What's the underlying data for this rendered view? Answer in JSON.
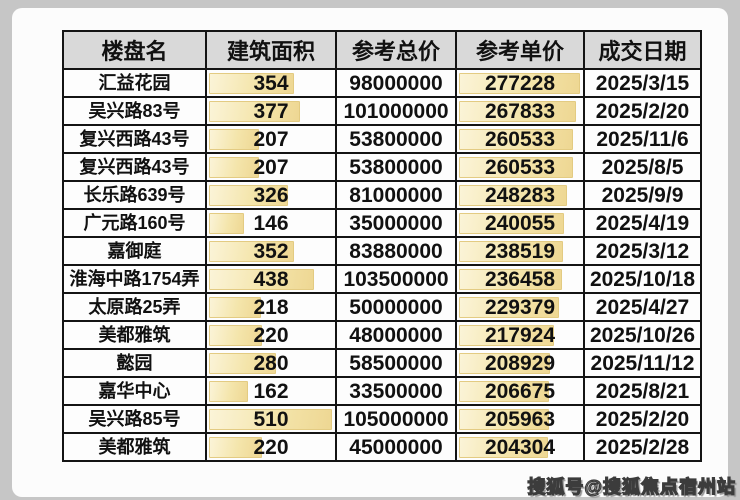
{
  "page": {
    "watermark": "搜狐号@搜狐焦点宿州站"
  },
  "colors": {
    "page_background": "#c6c6c6",
    "card_background": "#fcfcfc",
    "header_background": "#d9d9d9",
    "grid_border": "#141414",
    "data_bar_fill": "#f4e5ab",
    "data_bar_border": "#e3cb82",
    "text": "#111111"
  },
  "bars": {
    "area_max": 510,
    "unit_max": 277228
  },
  "table": {
    "columns": [
      {
        "key": "name",
        "label": "楼盘名"
      },
      {
        "key": "area",
        "label": "建筑面积"
      },
      {
        "key": "total",
        "label": "参考总价"
      },
      {
        "key": "unit",
        "label": "参考单价"
      },
      {
        "key": "date",
        "label": "成交日期"
      }
    ],
    "rows": [
      {
        "name": "汇益花园",
        "area": 354,
        "total": 98000000,
        "unit": 277228,
        "date": "2025/3/15"
      },
      {
        "name": "吴兴路83号",
        "area": 377,
        "total": 101000000,
        "unit": 267833,
        "date": "2025/2/20"
      },
      {
        "name": "复兴西路43号",
        "area": 207,
        "total": 53800000,
        "unit": 260533,
        "date": "2025/11/6"
      },
      {
        "name": "复兴西路43号",
        "area": 207,
        "total": 53800000,
        "unit": 260533,
        "date": "2025/8/5"
      },
      {
        "name": "长乐路639号",
        "area": 326,
        "total": 81000000,
        "unit": 248283,
        "date": "2025/9/9"
      },
      {
        "name": "广元路160号",
        "area": 146,
        "total": 35000000,
        "unit": 240055,
        "date": "2025/4/19"
      },
      {
        "name": "嘉御庭",
        "area": 352,
        "total": 83880000,
        "unit": 238519,
        "date": "2025/3/12"
      },
      {
        "name": "淮海中路1754弄",
        "area": 438,
        "total": 103500000,
        "unit": 236458,
        "date": "2025/10/18"
      },
      {
        "name": "太原路25弄",
        "area": 218,
        "total": 50000000,
        "unit": 229379,
        "date": "2025/4/27"
      },
      {
        "name": "美都雅筑",
        "area": 220,
        "total": 48000000,
        "unit": 217924,
        "date": "2025/10/26"
      },
      {
        "name": "懿园",
        "area": 280,
        "total": 58500000,
        "unit": 208929,
        "date": "2025/11/12"
      },
      {
        "name": "嘉华中心",
        "area": 162,
        "total": 33500000,
        "unit": 206675,
        "date": "2025/8/21"
      },
      {
        "name": "吴兴路85号",
        "area": 510,
        "total": 105000000,
        "unit": 205963,
        "date": "2025/2/20"
      },
      {
        "name": "美都雅筑",
        "area": 220,
        "total": 45000000,
        "unit": 204304,
        "date": "2025/2/28"
      }
    ]
  }
}
